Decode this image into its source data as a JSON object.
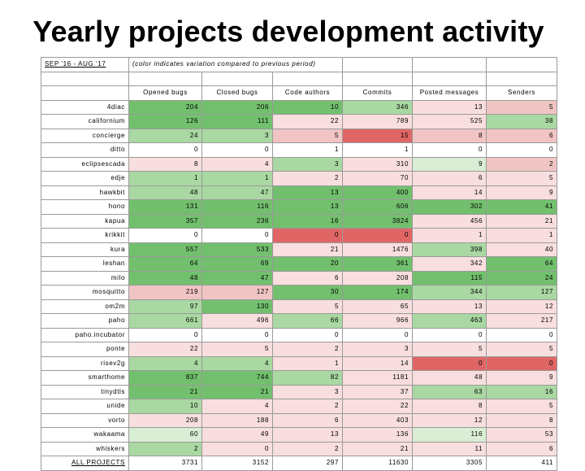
{
  "title": "Yearly projects development activity",
  "period_label": "SEP '16 - AUG '17",
  "note": "(color indicates variation compared to previous period)",
  "columns": [
    "Opened bugs",
    "Closed bugs",
    "Code authors",
    "Commits",
    "Posted messages",
    "Senders"
  ],
  "colors": {
    "white": "#ffffff",
    "green_dark": "#72c06e",
    "green_mid": "#a9d8a2",
    "green_light": "#d9eed4",
    "pink_light": "#f8dede",
    "pink_mid": "#f1c4c4",
    "red": "#e06666"
  },
  "rows": [
    {
      "project": "4diac",
      "values": [
        "204",
        "206",
        "10",
        "346",
        "13",
        "5"
      ],
      "colors": [
        "green_dark",
        "green_dark",
        "green_dark",
        "green_mid",
        "pink_light",
        "pink_mid"
      ]
    },
    {
      "project": "californium",
      "values": [
        "126",
        "111",
        "22",
        "789",
        "525",
        "38"
      ],
      "colors": [
        "green_dark",
        "green_dark",
        "pink_light",
        "pink_light",
        "pink_light",
        "green_mid"
      ]
    },
    {
      "project": "concierge",
      "values": [
        "24",
        "3",
        "5",
        "15",
        "8",
        "6"
      ],
      "colors": [
        "green_mid",
        "green_mid",
        "pink_mid",
        "red",
        "pink_mid",
        "pink_mid"
      ]
    },
    {
      "project": "ditto",
      "values": [
        "0",
        "0",
        "1",
        "1",
        "0",
        "0"
      ],
      "colors": [
        "white",
        "white",
        "white",
        "white",
        "white",
        "white"
      ]
    },
    {
      "project": "eclipsescada",
      "values": [
        "8",
        "4",
        "3",
        "310",
        "9",
        "2"
      ],
      "colors": [
        "pink_light",
        "pink_light",
        "green_mid",
        "pink_light",
        "green_light",
        "pink_mid"
      ]
    },
    {
      "project": "edje",
      "values": [
        "1",
        "1",
        "2",
        "70",
        "6",
        "5"
      ],
      "colors": [
        "green_mid",
        "green_mid",
        "pink_light",
        "pink_light",
        "pink_light",
        "pink_light"
      ]
    },
    {
      "project": "hawkbit",
      "values": [
        "48",
        "47",
        "13",
        "400",
        "14",
        "9"
      ],
      "colors": [
        "green_mid",
        "green_mid",
        "green_dark",
        "green_dark",
        "pink_light",
        "pink_light"
      ]
    },
    {
      "project": "hono",
      "values": [
        "131",
        "116",
        "13",
        "606",
        "302",
        "41"
      ],
      "colors": [
        "green_dark",
        "green_dark",
        "green_dark",
        "green_dark",
        "green_dark",
        "green_dark"
      ]
    },
    {
      "project": "kapua",
      "values": [
        "357",
        "236",
        "16",
        "3824",
        "456",
        "21"
      ],
      "colors": [
        "green_dark",
        "green_dark",
        "green_dark",
        "green_dark",
        "pink_light",
        "pink_light"
      ]
    },
    {
      "project": "krikkit",
      "values": [
        "0",
        "0",
        "0",
        "0",
        "1",
        "1"
      ],
      "colors": [
        "white",
        "white",
        "red",
        "red",
        "pink_light",
        "pink_light"
      ]
    },
    {
      "project": "kura",
      "values": [
        "557",
        "533",
        "21",
        "1476",
        "398",
        "40"
      ],
      "colors": [
        "green_dark",
        "green_dark",
        "pink_light",
        "pink_light",
        "green_mid",
        "pink_light"
      ]
    },
    {
      "project": "leshan",
      "values": [
        "64",
        "69",
        "20",
        "361",
        "342",
        "64"
      ],
      "colors": [
        "green_dark",
        "green_dark",
        "green_dark",
        "green_dark",
        "pink_light",
        "green_dark"
      ]
    },
    {
      "project": "milo",
      "values": [
        "48",
        "47",
        "6",
        "208",
        "115",
        "24"
      ],
      "colors": [
        "green_dark",
        "green_dark",
        "pink_light",
        "pink_light",
        "green_dark",
        "green_dark"
      ]
    },
    {
      "project": "mosquitto",
      "values": [
        "219",
        "127",
        "30",
        "174",
        "344",
        "127"
      ],
      "colors": [
        "pink_mid",
        "pink_mid",
        "green_dark",
        "green_dark",
        "green_mid",
        "green_mid"
      ]
    },
    {
      "project": "om2m",
      "values": [
        "97",
        "130",
        "5",
        "65",
        "13",
        "12"
      ],
      "colors": [
        "green_mid",
        "green_dark",
        "pink_light",
        "pink_light",
        "pink_light",
        "pink_light"
      ]
    },
    {
      "project": "paho",
      "values": [
        "661",
        "496",
        "66",
        "966",
        "463",
        "217"
      ],
      "colors": [
        "green_mid",
        "pink_light",
        "green_mid",
        "pink_light",
        "green_mid",
        "pink_light"
      ]
    },
    {
      "project": "paho.incubator",
      "values": [
        "0",
        "0",
        "0",
        "0",
        "0",
        "0"
      ],
      "colors": [
        "white",
        "white",
        "white",
        "white",
        "white",
        "white"
      ]
    },
    {
      "project": "ponte",
      "values": [
        "22",
        "5",
        "2",
        "3",
        "5",
        "5"
      ],
      "colors": [
        "pink_light",
        "pink_light",
        "pink_light",
        "pink_light",
        "pink_light",
        "pink_light"
      ]
    },
    {
      "project": "risev2g",
      "values": [
        "4",
        "4",
        "1",
        "14",
        "0",
        "0"
      ],
      "colors": [
        "green_mid",
        "green_mid",
        "pink_light",
        "pink_light",
        "red",
        "red"
      ]
    },
    {
      "project": "smarthome",
      "values": [
        "837",
        "744",
        "82",
        "1181",
        "48",
        "9"
      ],
      "colors": [
        "green_dark",
        "green_dark",
        "green_mid",
        "pink_light",
        "pink_light",
        "pink_light"
      ]
    },
    {
      "project": "tinydtls",
      "values": [
        "21",
        "21",
        "3",
        "37",
        "63",
        "16"
      ],
      "colors": [
        "green_dark",
        "green_dark",
        "pink_light",
        "pink_light",
        "green_mid",
        "green_mid"
      ]
    },
    {
      "project": "unide",
      "values": [
        "10",
        "4",
        "2",
        "22",
        "8",
        "5"
      ],
      "colors": [
        "green_mid",
        "pink_light",
        "pink_light",
        "pink_light",
        "pink_light",
        "pink_light"
      ]
    },
    {
      "project": "vorto",
      "values": [
        "208",
        "188",
        "6",
        "403",
        "12",
        "8"
      ],
      "colors": [
        "pink_light",
        "pink_light",
        "pink_light",
        "pink_light",
        "pink_light",
        "pink_light"
      ]
    },
    {
      "project": "wakaama",
      "values": [
        "60",
        "49",
        "13",
        "136",
        "116",
        "53"
      ],
      "colors": [
        "green_light",
        "pink_light",
        "pink_light",
        "pink_light",
        "green_light",
        "pink_light"
      ]
    },
    {
      "project": "whiskers",
      "values": [
        "2",
        "0",
        "2",
        "21",
        "11",
        "6"
      ],
      "colors": [
        "green_mid",
        "pink_light",
        "pink_light",
        "pink_light",
        "pink_light",
        "pink_light"
      ]
    }
  ],
  "total": {
    "project": "ALL PROJECTS",
    "values": [
      "3731",
      "3152",
      "297",
      "11630",
      "3305",
      "411"
    ]
  }
}
